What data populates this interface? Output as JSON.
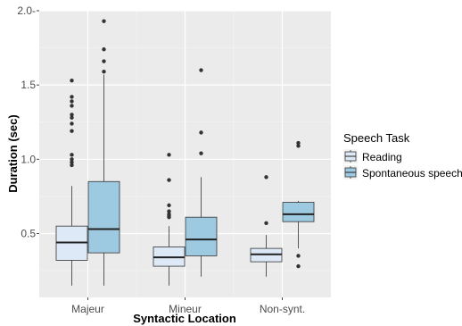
{
  "chart_data": {
    "type": "boxplot",
    "xlabel": "Syntactic Location",
    "ylabel": "Duration (sec)",
    "categories": [
      "Majeur",
      "Mineur",
      "Non-synt."
    ],
    "ylim": [
      0.07,
      2.0
    ],
    "yticks": [
      {
        "value": 0.5,
        "label": "0.5"
      },
      {
        "value": 1.0,
        "label": "1.0"
      },
      {
        "value": 1.5,
        "label": "1.5"
      },
      {
        "value": 2.0,
        "label": "2.0-"
      }
    ],
    "grid": true,
    "legend": {
      "title": "Speech Task",
      "position": "right",
      "entries": [
        "Reading",
        "Spontaneous speech"
      ]
    },
    "series": [
      {
        "name": "Reading",
        "color": "#dde9f7",
        "boxes": [
          {
            "category": "Majeur",
            "whisker_low": 0.15,
            "q1": 0.32,
            "median": 0.44,
            "q3": 0.55,
            "whisker_high": 0.82,
            "outliers": [
              0.96,
              0.98,
              1.0,
              1.03,
              1.19,
              1.24,
              1.28,
              1.3,
              1.36,
              1.39,
              1.42,
              1.53
            ]
          },
          {
            "category": "Mineur",
            "whisker_low": 0.15,
            "q1": 0.28,
            "median": 0.34,
            "q3": 0.41,
            "whisker_high": 0.55,
            "outliers": [
              0.61,
              0.62,
              0.63,
              0.65,
              0.69,
              0.86,
              1.03
            ]
          },
          {
            "category": "Non-synt.",
            "whisker_low": 0.21,
            "q1": 0.31,
            "median": 0.36,
            "q3": 0.4,
            "whisker_high": 0.49,
            "outliers": [
              0.57,
              0.88
            ]
          }
        ]
      },
      {
        "name": "Spontaneous speech",
        "color": "#9ecae1",
        "boxes": [
          {
            "category": "Majeur",
            "whisker_low": 0.15,
            "q1": 0.37,
            "median": 0.53,
            "q3": 0.85,
            "whisker_high": 1.57,
            "outliers": [
              1.59,
              1.66,
              1.74,
              1.93
            ]
          },
          {
            "category": "Mineur",
            "whisker_low": 0.21,
            "q1": 0.35,
            "median": 0.46,
            "q3": 0.61,
            "whisker_high": 0.88,
            "outliers": [
              1.04,
              1.18,
              1.6
            ]
          },
          {
            "category": "Non-synt.",
            "whisker_low": 0.4,
            "q1": 0.58,
            "median": 0.63,
            "q3": 0.71,
            "whisker_high": 0.72,
            "outliers": [
              0.28,
              0.35,
              1.09,
              1.11
            ]
          }
        ]
      }
    ]
  }
}
